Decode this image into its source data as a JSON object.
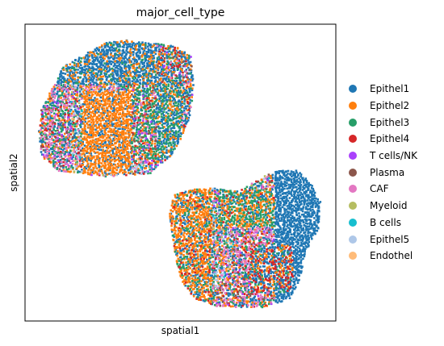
{
  "chart_data": {
    "type": "scatter",
    "title": "major_cell_type",
    "xlabel": "spatial1",
    "ylabel": "spatial2",
    "xlim": [
      0,
      1
    ],
    "ylim": [
      0,
      1
    ],
    "legend_position": "right",
    "grid": false,
    "ticks": false,
    "series": [
      {
        "name": "Epithel1",
        "color": "#1f77b4",
        "share": 0.25
      },
      {
        "name": "Epithel2",
        "color": "#ff7f0e",
        "share": 0.19
      },
      {
        "name": "Epithel3",
        "color": "#279e68",
        "share": 0.11
      },
      {
        "name": "Epithel4",
        "color": "#d62728",
        "share": 0.07
      },
      {
        "name": "T cells/NK",
        "color": "#aa40fc",
        "share": 0.04
      },
      {
        "name": "Plasma",
        "color": "#8c564b",
        "share": 0.05
      },
      {
        "name": "CAF",
        "color": "#e377c2",
        "share": 0.15
      },
      {
        "name": "Myeloid",
        "color": "#b5bd61",
        "share": 0.03
      },
      {
        "name": "B cells",
        "color": "#17becf",
        "share": 0.03
      },
      {
        "name": "Epithel5",
        "color": "#aec7e8",
        "share": 0.06
      },
      {
        "name": "Endothel",
        "color": "#ffbb78",
        "share": 0.02
      }
    ],
    "regions": [
      {
        "name": "upper-left-tissue",
        "x_range": [
          0.04,
          0.55
        ],
        "y_range": [
          0.49,
          0.95
        ]
      },
      {
        "name": "lower-right-tissue",
        "x_range": [
          0.46,
          0.95
        ],
        "y_range": [
          0.05,
          0.5
        ]
      }
    ]
  }
}
